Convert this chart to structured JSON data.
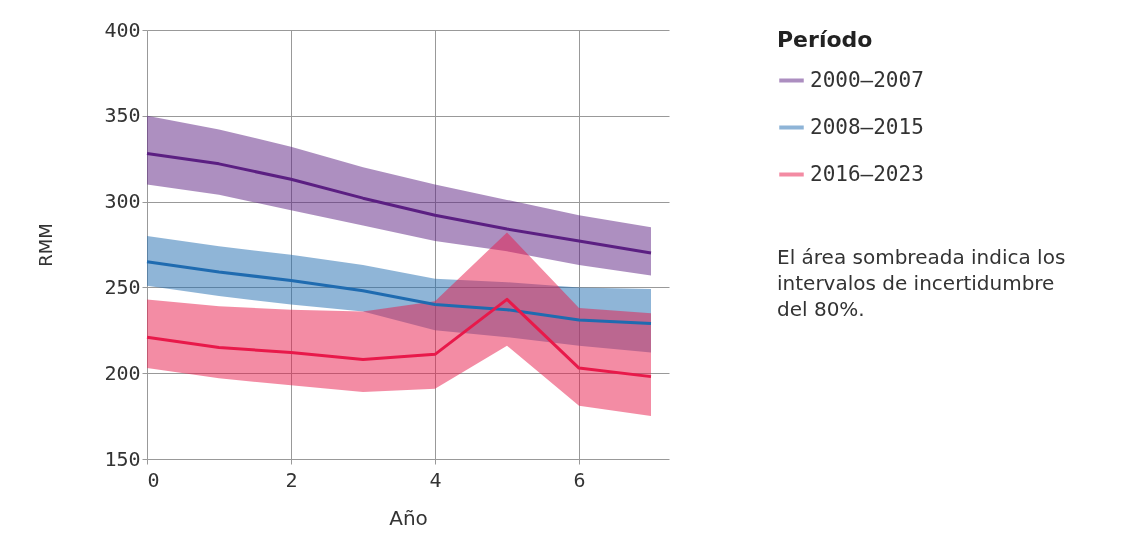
{
  "chart_data": {
    "type": "line",
    "xlabel": "Año",
    "ylabel": "RMM",
    "legend_title": "Período",
    "x": [
      0,
      1,
      2,
      3,
      4,
      5,
      6,
      7
    ],
    "xlim": [
      0,
      7.25
    ],
    "xticks": [
      0,
      2,
      4,
      6
    ],
    "ylim": [
      150,
      400
    ],
    "yticks": [
      150,
      200,
      250,
      300,
      350,
      400
    ],
    "grid": true,
    "legend": "right",
    "series": [
      {
        "name": "2000–2007",
        "color": "#5b1f82",
        "values": [
          328,
          322,
          313,
          302,
          292,
          284,
          277,
          270
        ],
        "lower": [
          310,
          304,
          295,
          286,
          277,
          271,
          263,
          257
        ],
        "upper": [
          350,
          342,
          332,
          320,
          310,
          301,
          292,
          285
        ]
      },
      {
        "name": "2008–2015",
        "color": "#1f6bb0",
        "values": [
          265,
          259,
          254,
          248,
          240,
          237,
          231,
          229
        ],
        "lower": [
          251,
          245,
          240,
          236,
          225,
          221,
          216,
          212
        ],
        "upper": [
          280,
          274,
          269,
          263,
          255,
          253,
          250,
          249
        ]
      },
      {
        "name": "2016–2023",
        "color": "#e8194a",
        "values": [
          221,
          215,
          212,
          208,
          211,
          243,
          203,
          198
        ],
        "lower": [
          203,
          197,
          193,
          189,
          191,
          216,
          181,
          175
        ],
        "upper": [
          243,
          239,
          237,
          236,
          242,
          282,
          238,
          235
        ]
      }
    ],
    "annotations": [
      "El área sombreada indica los intervalos de incertidumbre del 80%."
    ]
  }
}
